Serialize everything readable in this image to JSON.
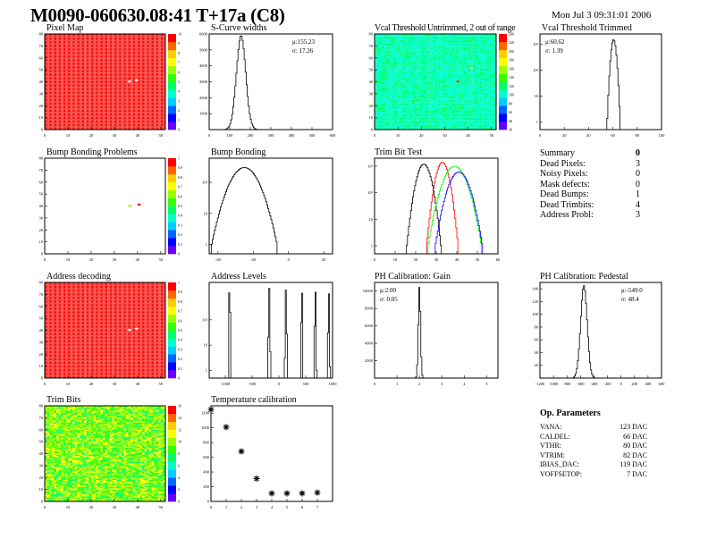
{
  "header": {
    "title": "M0090-060630.08:41 T+17a (C8)",
    "date": "Mon Jul  3 09:31:01 2006"
  },
  "colors": {
    "palette": [
      "#6600ff",
      "#0000ff",
      "#0066ff",
      "#00ccff",
      "#00ffcc",
      "#00ff66",
      "#33ff00",
      "#99ff00",
      "#ffff00",
      "#ffcc00",
      "#ff6600",
      "#ff0000"
    ],
    "hist_line": "#000000",
    "trim_series": [
      "#000000",
      "#ff0000",
      "#00ff00",
      "#0000ff"
    ]
  },
  "chart_data": [
    {
      "id": "pixel_map",
      "type": "heatmap",
      "title": "Pixel Map",
      "xlim": [
        0,
        52
      ],
      "ylim": [
        0,
        80
      ],
      "zlim": [
        0,
        10
      ],
      "xticks": [
        "0",
        "10",
        "20",
        "30",
        "40",
        "50"
      ],
      "yticks": [
        "0",
        "10",
        "20",
        "30",
        "40",
        "50",
        "60",
        "70",
        "80"
      ],
      "zticks": [
        "0",
        "1",
        "2",
        "3",
        "4",
        "5",
        "6",
        "7",
        "8",
        "9",
        "10"
      ],
      "fill_value": 10,
      "missing_cells": [
        [
          36,
          40
        ],
        [
          39,
          41
        ]
      ]
    },
    {
      "id": "scurve_widths",
      "type": "histogram",
      "title": "S-Curve widths",
      "xlim": [
        0,
        600
      ],
      "ylim": [
        0,
        6000
      ],
      "xticks": [
        "0",
        "100",
        "200",
        "300",
        "400",
        "500",
        "600"
      ],
      "yticks": [
        "1000",
        "2000",
        "3000",
        "4000",
        "5000",
        "6000"
      ],
      "stats": {
        "mean": "μ:155.23",
        "sigma": "σ: 17.26"
      },
      "mean": 155.23,
      "sigma": 17.26,
      "peak": 5900
    },
    {
      "id": "vcal_untrimmed",
      "type": "heatmap",
      "title": "Vcal Threshold Untrimmed, 2 out of range",
      "xlim": [
        0,
        52
      ],
      "ylim": [
        0,
        80
      ],
      "zlim": [
        0,
        250
      ],
      "xticks": [
        "0",
        "10",
        "20",
        "30",
        "40",
        "50"
      ],
      "yticks": [
        "0",
        "10",
        "20",
        "30",
        "40",
        "50",
        "60",
        "70",
        "80"
      ],
      "zticks": [
        "20",
        "40",
        "60",
        "80",
        "100",
        "120",
        "140",
        "160",
        "180",
        "200",
        "220",
        "240"
      ],
      "typical_value": 100
    },
    {
      "id": "vcal_trimmed",
      "type": "histogram",
      "log": true,
      "title": "Vcal Threshold Trimmed",
      "xlim": [
        0,
        100
      ],
      "ylim": [
        0.5,
        2500
      ],
      "xticks": [
        "0",
        "20",
        "40",
        "60",
        "80",
        "100"
      ],
      "yticks": [
        "1",
        "10",
        "10²",
        "10³"
      ],
      "stats": {
        "mean": "μ:60.62",
        "sigma": "σ: 1.39"
      },
      "mean": 60.62,
      "sigma": 1.39,
      "peak": 1500
    },
    {
      "id": "bump_problems",
      "type": "heatmap",
      "title": "Bump Bonding Problems",
      "xlim": [
        0,
        52
      ],
      "ylim": [
        0,
        80
      ],
      "zlim": [
        0,
        1
      ],
      "xticks": [
        "0",
        "10",
        "20",
        "30",
        "40",
        "50"
      ],
      "yticks": [
        "0",
        "10",
        "20",
        "30",
        "40",
        "50",
        "60",
        "70",
        "80"
      ],
      "zticks": [
        "0",
        "0.1",
        "0.2",
        "0.3",
        "0.4",
        "0.5",
        "0.6",
        "0.7",
        "0.8",
        "0.9",
        "1"
      ],
      "cells": [
        [
          36,
          40,
          0.6
        ],
        [
          40,
          41,
          1
        ]
      ]
    },
    {
      "id": "bump_bonding",
      "type": "histogram",
      "log": true,
      "title": "Bump Bonding",
      "xlim": [
        -45,
        25
      ],
      "ylim": [
        0.5,
        600
      ],
      "xticks": [
        "-40",
        "-20",
        "0",
        "20"
      ],
      "yticks": [
        "1",
        "10",
        "10²"
      ],
      "mean": -25,
      "sigma": 5.5,
      "peak": 300
    },
    {
      "id": "trim_bit_test",
      "type": "histogram",
      "log": true,
      "title": "Trim Bit Test",
      "xlim": [
        0,
        60
      ],
      "ylim": [
        0.5,
        2000
      ],
      "xticks": [
        "0",
        "10",
        "20",
        "30",
        "40",
        "50",
        "60"
      ],
      "yticks": [
        "1",
        "10",
        "10²",
        "10³"
      ],
      "series": [
        {
          "mean": 24,
          "sigma": 2.2,
          "peak": 1200
        },
        {
          "mean": 33,
          "sigma": 2.0,
          "peak": 1400
        },
        {
          "mean": 39,
          "sigma": 3.5,
          "peak": 1000
        },
        {
          "mean": 41,
          "sigma": 3.2,
          "peak": 600
        }
      ]
    },
    {
      "id": "address_decoding",
      "type": "heatmap",
      "title": "Address decoding",
      "xlim": [
        0,
        52
      ],
      "ylim": [
        0,
        80
      ],
      "zlim": [
        0,
        1
      ],
      "xticks": [
        "0",
        "10",
        "20",
        "30",
        "40",
        "50"
      ],
      "yticks": [
        "0",
        "10",
        "20",
        "30",
        "40",
        "50",
        "60",
        "70",
        "80"
      ],
      "zticks": [
        "0",
        "0.1",
        "0.2",
        "0.3",
        "0.4",
        "0.5",
        "0.6",
        "0.7",
        "0.8",
        "0.9",
        "1"
      ],
      "fill_value": 1,
      "missing_cells": [
        [
          36,
          40
        ],
        [
          39,
          41
        ]
      ]
    },
    {
      "id": "address_levels",
      "type": "histogram",
      "log": true,
      "title": "Address Levels",
      "xlim": [
        -1300,
        1000
      ],
      "ylim": [
        0.5,
        3000
      ],
      "xticks": [
        "-1000",
        "-500",
        "0",
        "500",
        "1000"
      ],
      "yticks": [
        "1",
        "10",
        "10²"
      ],
      "peaks": [
        -920,
        -180,
        130,
        430,
        680,
        930,
        1120
      ],
      "peak_heights": [
        2000,
        1800,
        1600,
        1500,
        1500,
        1200,
        1100
      ]
    },
    {
      "id": "ph_gain",
      "type": "histogram",
      "title": "PH Calibration: Gain",
      "xlim": [
        0,
        5.5
      ],
      "ylim": [
        0,
        11000
      ],
      "xticks": [
        "0",
        "1",
        "2",
        "3",
        "4",
        "5"
      ],
      "yticks": [
        "2000",
        "4000",
        "6000",
        "8000",
        "10000"
      ],
      "stats": {
        "mean": "μ:2.00",
        "sigma": "σ: 0.05"
      },
      "mean": 2.0,
      "sigma": 0.05,
      "peak": 10500
    },
    {
      "id": "ph_pedestal",
      "type": "histogram",
      "title": "PH Calibration: Pedestal",
      "xlim": [
        -1200,
        600
      ],
      "ylim": [
        0,
        150
      ],
      "xticks": [
        "-1200",
        "-1000",
        "-800",
        "-600",
        "-400",
        "-200",
        "0",
        "200",
        "400",
        "600"
      ],
      "yticks": [
        "20",
        "40",
        "60",
        "80",
        "100",
        "120",
        "140"
      ],
      "stats": {
        "mean": "μ:-549.0",
        "sigma": "σ: 48.4"
      },
      "mean": -549.0,
      "sigma": 48.4,
      "peak": 145
    },
    {
      "id": "trim_bits",
      "type": "heatmap",
      "title": "Trim Bits",
      "xlim": [
        0,
        52
      ],
      "ylim": [
        0,
        80
      ],
      "zlim": [
        0,
        16
      ],
      "xticks": [
        "0",
        "10",
        "20",
        "30",
        "40",
        "50"
      ],
      "yticks": [
        "0",
        "10",
        "20",
        "30",
        "40",
        "50",
        "60",
        "70",
        "80"
      ],
      "zticks": [
        "0",
        "2",
        "4",
        "6",
        "8",
        "10",
        "12",
        "14",
        "16"
      ],
      "typical_value": 9.5
    },
    {
      "id": "temperature_calibration",
      "type": "scatter",
      "title": "Temperature calibration",
      "xlim": [
        0,
        8
      ],
      "ylim": [
        0,
        1300
      ],
      "xticks": [
        "0",
        "1",
        "2",
        "3",
        "4",
        "5",
        "6",
        "7"
      ],
      "yticks": [
        "0",
        "200",
        "400",
        "600",
        "800",
        "1000",
        "1200"
      ],
      "x": [
        0,
        1,
        2,
        3,
        4,
        5,
        6,
        7
      ],
      "y": [
        1250,
        1010,
        680,
        310,
        110,
        110,
        110,
        120
      ]
    }
  ],
  "summary": {
    "title": "Summary",
    "value": "0",
    "rows": [
      {
        "label": "Dead Pixels:",
        "value": "3"
      },
      {
        "label": "Noisy Pixels:",
        "value": "0"
      },
      {
        "label": "Mask defects:",
        "value": "0"
      },
      {
        "label": "Dead Bumps:",
        "value": "1"
      },
      {
        "label": "Dead Trimbits:",
        "value": "4"
      },
      {
        "label": "Address Probl:",
        "value": "3"
      }
    ]
  },
  "op_parameters": {
    "title": "Op. Parameters",
    "rows": [
      {
        "label": "VANA:",
        "value": "123 DAC"
      },
      {
        "label": "CALDEL:",
        "value": "66 DAC"
      },
      {
        "label": "VTHR:",
        "value": "80 DAC"
      },
      {
        "label": "VTRIM:",
        "value": "82 DAC"
      },
      {
        "label": "IBIAS_DAC:",
        "value": "119 DAC"
      },
      {
        "label": "VOFFSETOP:",
        "value": "7 DAC"
      }
    ]
  }
}
